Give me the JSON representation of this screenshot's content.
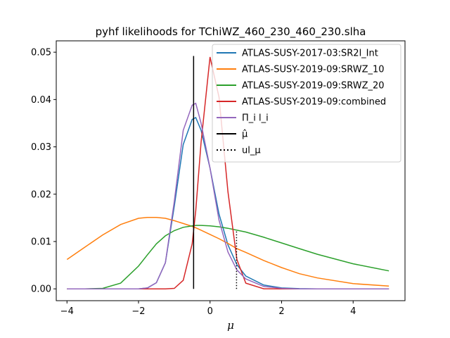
{
  "chart_data": {
    "type": "line",
    "title": "pyhf likelihoods for TChiWZ_460_230_460_230.slha",
    "xlabel": "μ",
    "ylabel": "",
    "xlim": [
      -4.3,
      5.45
    ],
    "ylim": [
      -0.0025,
      0.0524
    ],
    "xticks": [
      -4,
      -2,
      0,
      2,
      4
    ],
    "xtick_labels": [
      "−4",
      "−2",
      "0",
      "2",
      "4"
    ],
    "yticks": [
      0.0,
      0.01,
      0.02,
      0.03,
      0.04,
      0.05
    ],
    "ytick_labels": [
      "0.00",
      "0.01",
      "0.02",
      "0.03",
      "0.04",
      "0.05"
    ],
    "legend_position": "upper right",
    "x": [
      -4.0,
      -3.5,
      -3.0,
      -2.5,
      -2.0,
      -1.75,
      -1.5,
      -1.25,
      -1.0,
      -0.75,
      -0.5,
      -0.4,
      -0.25,
      0.0,
      0.25,
      0.5,
      0.75,
      1.0,
      1.5,
      2.0,
      2.5,
      3.0,
      4.0,
      5.0
    ],
    "series": [
      {
        "name": "ATLAS-SUSY-2017-03:SR2l_Int",
        "color": "#1f77b4",
        "style": "solid",
        "values": [
          0,
          0,
          0,
          0,
          0,
          0.0002,
          0.0013,
          0.0055,
          0.0175,
          0.0305,
          0.0358,
          0.0362,
          0.0335,
          0.0255,
          0.0158,
          0.0093,
          0.0051,
          0.0027,
          0.0008,
          0.0002,
          5e-05,
          0,
          0,
          0
        ]
      },
      {
        "name": "ATLAS-SUSY-2019-09:SRWZ_10",
        "color": "#ff7f0e",
        "style": "solid",
        "values": [
          0.0062,
          0.0088,
          0.0114,
          0.0136,
          0.0149,
          0.0151,
          0.0151,
          0.0149,
          0.0144,
          0.0138,
          0.0132,
          0.0129,
          0.0124,
          0.0115,
          0.0106,
          0.0096,
          0.0085,
          0.0077,
          0.006,
          0.0045,
          0.0032,
          0.0023,
          0.0011,
          0.0006
        ]
      },
      {
        "name": "ATLAS-SUSY-2019-09:SRWZ_20",
        "color": "#2ca02c",
        "style": "solid",
        "values": [
          0,
          0,
          0.0001,
          0.0012,
          0.0048,
          0.0072,
          0.0095,
          0.0112,
          0.0123,
          0.013,
          0.0133,
          0.0134,
          0.0134,
          0.0133,
          0.0131,
          0.0128,
          0.0124,
          0.012,
          0.0109,
          0.0097,
          0.0085,
          0.0073,
          0.0053,
          0.0038
        ]
      },
      {
        "name": "ATLAS-SUSY-2019-09:combined",
        "color": "#d62728",
        "style": "solid",
        "values": [
          0,
          0,
          0,
          0,
          0,
          0,
          0,
          0,
          0.0001,
          0.0018,
          0.0095,
          0.0165,
          0.031,
          0.049,
          0.0405,
          0.0205,
          0.0062,
          0.0012,
          2e-05,
          0,
          0,
          0,
          0,
          0
        ]
      },
      {
        "name": "Π_i l_i",
        "color": "#9467bd",
        "style": "solid",
        "values": [
          0,
          0,
          0,
          0,
          0,
          0.0002,
          0.0013,
          0.0055,
          0.0185,
          0.0335,
          0.0388,
          0.0392,
          0.035,
          0.0255,
          0.0145,
          0.0078,
          0.004,
          0.0021,
          0.0005,
          0.0001,
          0,
          0,
          0,
          0
        ]
      }
    ],
    "vlines": [
      {
        "name": "μ̂",
        "x": -0.46,
        "ymin": 0.0,
        "ymax": 0.0492,
        "color": "#000000",
        "style": "solid"
      },
      {
        "name": "ul_μ",
        "x": 0.74,
        "ymin": 0.0,
        "ymax": 0.0123,
        "color": "#000000",
        "style": "dotted"
      }
    ]
  }
}
